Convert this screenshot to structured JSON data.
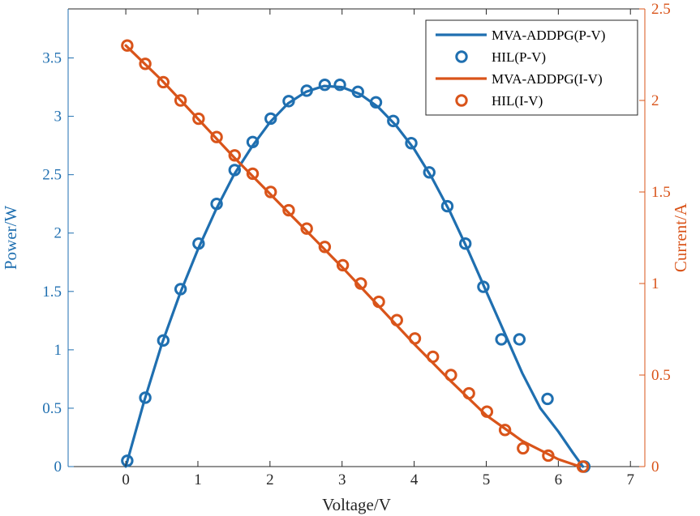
{
  "chart_data": {
    "type": "line",
    "xlabel": "Voltage/V",
    "ylabel_left": "Power/W",
    "ylabel_right": "Current/A",
    "xlim": [
      -0.8,
      7.2
    ],
    "ylim_left": [
      0,
      3.92
    ],
    "ylim_right": [
      0,
      2.5
    ],
    "x_ticks": [
      "0",
      "1",
      "2",
      "3",
      "4",
      "5",
      "6",
      "7"
    ],
    "y_left_ticks": [
      "0",
      "0.5",
      "1",
      "1.5",
      "2",
      "2.5",
      "3",
      "3.5"
    ],
    "y_right_ticks": [
      "0",
      "0.5",
      "1",
      "1.5",
      "2",
      "2.5"
    ],
    "grid": false,
    "legend_position": "top-right",
    "colors": {
      "pv": "#1f6fb0",
      "iv": "#d9541a",
      "axis_left": "#1f6fb0",
      "axis_right": "#d9541a"
    },
    "series": [
      {
        "name": "MVA-ADDPG(P-V)",
        "axis": "left",
        "style": "line",
        "x": [
          0,
          0.25,
          0.5,
          0.75,
          1.0,
          1.25,
          1.5,
          1.75,
          2.0,
          2.25,
          2.5,
          2.75,
          3.0,
          3.25,
          3.5,
          3.75,
          4.0,
          4.25,
          4.5,
          4.75,
          5.0,
          5.25,
          5.5,
          5.75,
          6.0,
          6.2,
          6.34
        ],
        "y": [
          0,
          0.55,
          1.05,
          1.48,
          1.86,
          2.2,
          2.5,
          2.74,
          2.95,
          3.11,
          3.21,
          3.26,
          3.25,
          3.19,
          3.08,
          2.92,
          2.72,
          2.47,
          2.18,
          1.85,
          1.5,
          1.15,
          0.8,
          0.5,
          0.3,
          0.12,
          0
        ]
      },
      {
        "name": "HIL(P-V)",
        "axis": "left",
        "style": "markers",
        "x": [
          0.02,
          0.27,
          0.52,
          0.76,
          1.01,
          1.26,
          1.51,
          1.76,
          2.01,
          2.26,
          2.51,
          2.76,
          2.97,
          3.22,
          3.47,
          3.71,
          3.96,
          4.21,
          4.46,
          4.71,
          4.96,
          5.21,
          5.46,
          5.85,
          6.36
        ],
        "y": [
          0.05,
          0.59,
          1.08,
          1.52,
          1.91,
          2.25,
          2.54,
          2.78,
          2.98,
          3.13,
          3.22,
          3.27,
          3.27,
          3.21,
          3.12,
          2.96,
          2.77,
          2.52,
          2.23,
          1.91,
          1.54,
          1.09,
          1.09,
          0.58,
          0
        ]
      },
      {
        "name": "MVA-ADDPG(I-V)",
        "axis": "right",
        "style": "line",
        "x": [
          0,
          0.5,
          1.0,
          1.5,
          2.0,
          2.5,
          3.0,
          3.5,
          4.0,
          4.5,
          5.0,
          5.5,
          6.0,
          6.3
        ],
        "y": [
          2.3,
          2.11,
          1.9,
          1.69,
          1.49,
          1.29,
          1.09,
          0.88,
          0.67,
          0.47,
          0.28,
          0.14,
          0.04,
          0
        ]
      },
      {
        "name": "HIL(I-V)",
        "axis": "right",
        "style": "markers",
        "x": [
          0.02,
          0.27,
          0.52,
          0.76,
          1.01,
          1.26,
          1.51,
          1.76,
          2.01,
          2.26,
          2.51,
          2.76,
          3.01,
          3.26,
          3.51,
          3.76,
          4.01,
          4.26,
          4.51,
          4.76,
          5.01,
          5.26,
          5.51,
          5.86,
          6.34
        ],
        "y": [
          2.3,
          2.2,
          2.1,
          2.0,
          1.9,
          1.8,
          1.7,
          1.6,
          1.5,
          1.4,
          1.3,
          1.2,
          1.1,
          1.0,
          0.9,
          0.8,
          0.7,
          0.6,
          0.5,
          0.4,
          0.3,
          0.2,
          0.1,
          0.06,
          0
        ]
      }
    ]
  }
}
